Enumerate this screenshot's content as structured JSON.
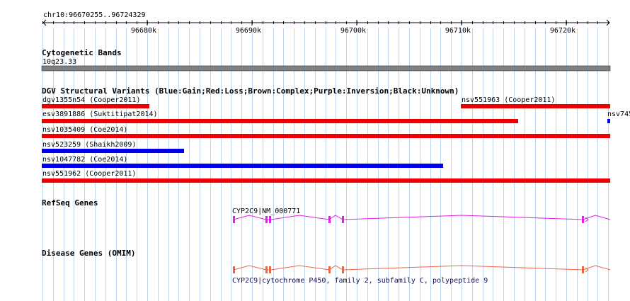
{
  "ruler": {
    "region": "chr10:96670255..96724329",
    "ticks": [
      "96680k",
      "96690k",
      "96700k",
      "96710k",
      "96720k"
    ]
  },
  "cytoband": {
    "title": "Cytogenetic Bands",
    "band": "10q23.33"
  },
  "dgv": {
    "title": "DGV Structural Variants (Blue:Gain;Red:Loss;Brown:Complex;Purple:Inversion;Black:Unknown)",
    "features": [
      {
        "label": "dgv1355n54 (Cooper2011)",
        "color": "#ee0000"
      },
      {
        "label": "nsv551963 (Cooper2011)",
        "color": "#ee0000"
      },
      {
        "label": "esv3891886 (Suktitipat2014)",
        "color": "#ee0000"
      },
      {
        "label": "nsv745",
        "color": "#0000ee"
      },
      {
        "label": "nsv1035409 (Coe2014)",
        "color": "#ee0000"
      },
      {
        "label": "nsv523259 (Shaikh2009)",
        "color": "#0000ee"
      },
      {
        "label": "nsv1047782 (Coe2014)",
        "color": "#0000ee"
      },
      {
        "label": "nsv551962 (Cooper2011)",
        "color": "#ee0000"
      }
    ]
  },
  "refseq": {
    "title": "RefSeq Genes",
    "gene_label": "CYP2C9|NM_000771",
    "color": "#dd22dd"
  },
  "omim": {
    "title": "Disease Genes (OMIM)",
    "gene_label": "CYP2C9|cytochrome P450, family 2, subfamily C, polypeptide 9",
    "color": "#ee6644"
  },
  "colors": {
    "grid": "#bbd6ee",
    "cytoband": "#808080"
  }
}
